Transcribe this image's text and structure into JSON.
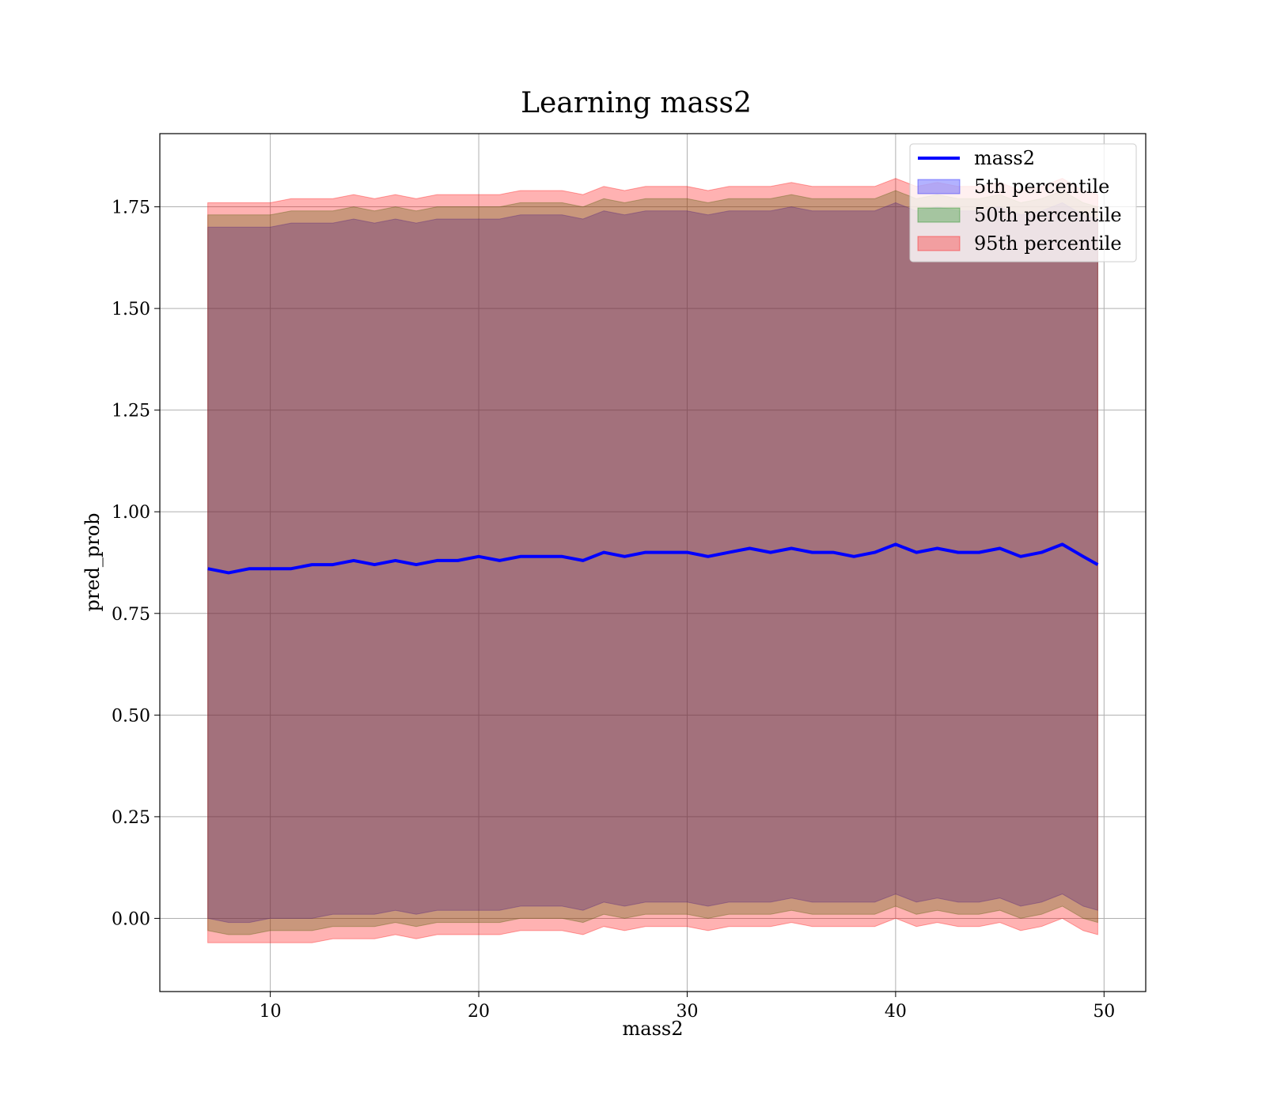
{
  "chart_data": {
    "type": "line",
    "title": "Learning mass2",
    "xlabel": "mass2",
    "ylabel": "pred_prob",
    "xlim": [
      4.7,
      52.0
    ],
    "ylim": [
      -0.18,
      1.93
    ],
    "x_ticks": [
      10,
      20,
      30,
      40,
      50
    ],
    "x_tick_labels": [
      "10",
      "20",
      "30",
      "40",
      "50"
    ],
    "y_ticks": [
      0.0,
      0.25,
      0.5,
      0.75,
      1.0,
      1.25,
      1.5,
      1.75
    ],
    "y_tick_labels": [
      "0.00",
      "0.25",
      "0.50",
      "0.75",
      "1.00",
      "1.25",
      "1.50",
      "1.75"
    ],
    "grid": true,
    "legend": {
      "position": "top-right",
      "entries": [
        "mass2",
        "5th percentile",
        "50th percentile",
        "95th percentile"
      ]
    },
    "colors": {
      "line": "#0000ff",
      "band_5th": "#0000ff",
      "band_50th": "#008000",
      "band_95th": "#ff0000"
    },
    "x": [
      7.0,
      8.0,
      9.0,
      10.0,
      11.0,
      12.0,
      13.0,
      14.0,
      15.0,
      16.0,
      17.0,
      18.0,
      19.0,
      20.0,
      21.0,
      22.0,
      23.0,
      24.0,
      25.0,
      26.0,
      27.0,
      28.0,
      29.0,
      30.0,
      31.0,
      32.0,
      33.0,
      34.0,
      35.0,
      36.0,
      37.0,
      38.0,
      39.0,
      40.0,
      41.0,
      42.0,
      43.0,
      44.0,
      45.0,
      46.0,
      47.0,
      48.0,
      49.0,
      49.7
    ],
    "series": [
      {
        "name": "mass2",
        "kind": "line",
        "values": [
          0.86,
          0.85,
          0.86,
          0.86,
          0.86,
          0.87,
          0.87,
          0.88,
          0.87,
          0.88,
          0.87,
          0.88,
          0.88,
          0.89,
          0.88,
          0.89,
          0.89,
          0.89,
          0.88,
          0.9,
          0.89,
          0.9,
          0.9,
          0.9,
          0.89,
          0.9,
          0.91,
          0.9,
          0.91,
          0.9,
          0.9,
          0.89,
          0.9,
          0.92,
          0.9,
          0.91,
          0.9,
          0.9,
          0.91,
          0.89,
          0.9,
          0.92,
          0.89,
          0.87
        ]
      },
      {
        "name": "5th percentile",
        "kind": "band",
        "lower": [
          0.0,
          -0.01,
          -0.01,
          0.0,
          0.0,
          0.0,
          0.01,
          0.01,
          0.01,
          0.02,
          0.01,
          0.02,
          0.02,
          0.02,
          0.02,
          0.03,
          0.03,
          0.03,
          0.02,
          0.04,
          0.03,
          0.04,
          0.04,
          0.04,
          0.03,
          0.04,
          0.04,
          0.04,
          0.05,
          0.04,
          0.04,
          0.04,
          0.04,
          0.06,
          0.04,
          0.05,
          0.04,
          0.04,
          0.05,
          0.03,
          0.04,
          0.06,
          0.03,
          0.02
        ],
        "upper": [
          1.7,
          1.7,
          1.7,
          1.7,
          1.71,
          1.71,
          1.71,
          1.72,
          1.71,
          1.72,
          1.71,
          1.72,
          1.72,
          1.72,
          1.72,
          1.73,
          1.73,
          1.73,
          1.72,
          1.74,
          1.73,
          1.74,
          1.74,
          1.74,
          1.73,
          1.74,
          1.74,
          1.74,
          1.75,
          1.74,
          1.74,
          1.74,
          1.74,
          1.76,
          1.74,
          1.75,
          1.74,
          1.74,
          1.75,
          1.73,
          1.74,
          1.76,
          1.73,
          1.72
        ]
      },
      {
        "name": "50th percentile",
        "kind": "band",
        "lower": [
          -0.03,
          -0.04,
          -0.04,
          -0.03,
          -0.03,
          -0.03,
          -0.02,
          -0.02,
          -0.02,
          -0.01,
          -0.02,
          -0.01,
          -0.01,
          -0.01,
          -0.01,
          0.0,
          0.0,
          0.0,
          -0.01,
          0.01,
          0.0,
          0.01,
          0.01,
          0.01,
          0.0,
          0.01,
          0.01,
          0.01,
          0.02,
          0.01,
          0.01,
          0.01,
          0.01,
          0.03,
          0.01,
          0.02,
          0.01,
          0.01,
          0.02,
          0.0,
          0.01,
          0.03,
          0.0,
          -0.01
        ],
        "upper": [
          1.73,
          1.73,
          1.73,
          1.73,
          1.74,
          1.74,
          1.74,
          1.75,
          1.74,
          1.75,
          1.74,
          1.75,
          1.75,
          1.75,
          1.75,
          1.76,
          1.76,
          1.76,
          1.75,
          1.77,
          1.76,
          1.77,
          1.77,
          1.77,
          1.76,
          1.77,
          1.77,
          1.77,
          1.78,
          1.77,
          1.77,
          1.77,
          1.77,
          1.79,
          1.77,
          1.78,
          1.77,
          1.77,
          1.78,
          1.76,
          1.77,
          1.79,
          1.76,
          1.75
        ]
      },
      {
        "name": "95th percentile",
        "kind": "band",
        "lower": [
          -0.06,
          -0.06,
          -0.06,
          -0.06,
          -0.06,
          -0.06,
          -0.05,
          -0.05,
          -0.05,
          -0.04,
          -0.05,
          -0.04,
          -0.04,
          -0.04,
          -0.04,
          -0.03,
          -0.03,
          -0.03,
          -0.04,
          -0.02,
          -0.03,
          -0.02,
          -0.02,
          -0.02,
          -0.03,
          -0.02,
          -0.02,
          -0.02,
          -0.01,
          -0.02,
          -0.02,
          -0.02,
          -0.02,
          0.0,
          -0.02,
          -0.01,
          -0.02,
          -0.02,
          -0.01,
          -0.03,
          -0.02,
          0.0,
          -0.03,
          -0.04
        ],
        "upper": [
          1.76,
          1.76,
          1.76,
          1.76,
          1.77,
          1.77,
          1.77,
          1.78,
          1.77,
          1.78,
          1.77,
          1.78,
          1.78,
          1.78,
          1.78,
          1.79,
          1.79,
          1.79,
          1.78,
          1.8,
          1.79,
          1.8,
          1.8,
          1.8,
          1.79,
          1.8,
          1.8,
          1.8,
          1.81,
          1.8,
          1.8,
          1.8,
          1.8,
          1.82,
          1.8,
          1.81,
          1.8,
          1.8,
          1.81,
          1.79,
          1.8,
          1.82,
          1.79,
          1.78
        ]
      }
    ]
  }
}
